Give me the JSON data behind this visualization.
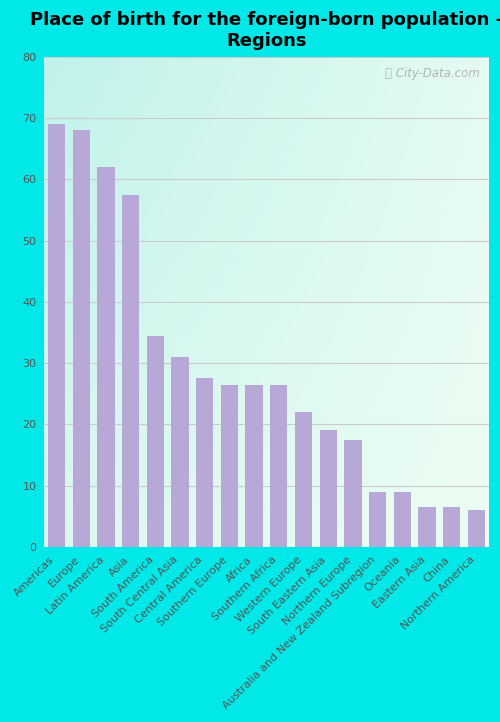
{
  "title": "Place of birth for the foreign-born population -\nRegions",
  "categories": [
    "Americas",
    "Europe",
    "Latin America",
    "Asia",
    "South America",
    "South Central Asia",
    "Central America",
    "Southern Europe",
    "Africa",
    "Southern Africa",
    "Western Europe",
    "South Eastern Asia",
    "Northern Europe",
    "Australia and New Zealand Subregion",
    "Oceania",
    "Eastern Asia",
    "China",
    "Northern America"
  ],
  "values": [
    69,
    68,
    62,
    57.5,
    34.5,
    31,
    27.5,
    26.5,
    26.5,
    26.5,
    22,
    19,
    17.5,
    9,
    9,
    6.5,
    6.5,
    6
  ],
  "bar_color": "#b8a8d8",
  "bar_edge_color": "#b8a8d8",
  "ylim": [
    0,
    80
  ],
  "yticks": [
    0,
    10,
    20,
    30,
    40,
    50,
    60,
    70,
    80
  ],
  "outer_bg": "#00e8e8",
  "watermark": "City-Data.com",
  "title_fontsize": 13,
  "tick_fontsize": 8,
  "grid_color": "#cccccc",
  "bg_left": "#a0e8e0",
  "bg_right": "#f0f8ee",
  "bg_top": "#e8fff8",
  "bg_bottom": "#d8f8f0"
}
